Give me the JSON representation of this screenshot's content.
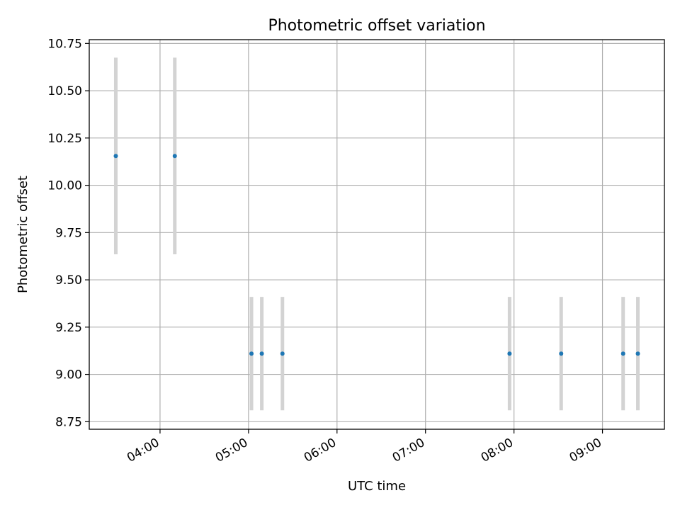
{
  "chart_data": {
    "type": "scatter",
    "title": "Photometric offset variation",
    "xlabel": "UTC time",
    "ylabel": "Photometric offset",
    "xlim": [
      "03:12",
      "09:42"
    ],
    "ylim": [
      8.71,
      10.77
    ],
    "grid": true,
    "x_ticks": [
      "04:00",
      "05:00",
      "06:00",
      "07:00",
      "08:00",
      "09:00"
    ],
    "y_ticks": [
      "8.75",
      "9.00",
      "9.25",
      "9.50",
      "9.75",
      "10.00",
      "10.25",
      "10.50",
      "10.75"
    ],
    "series": [
      {
        "marker_color": "#1f77b4",
        "errorbar_color": "#d3d3d3",
        "points": [
          {
            "x": "03:30",
            "y": 10.155,
            "yerr_low": 9.635,
            "yerr_high": 10.675
          },
          {
            "x": "04:10",
            "y": 10.155,
            "yerr_low": 9.635,
            "yerr_high": 10.675
          },
          {
            "x": "05:02",
            "y": 9.11,
            "yerr_low": 8.81,
            "yerr_high": 9.41
          },
          {
            "x": "05:09",
            "y": 9.11,
            "yerr_low": 8.81,
            "yerr_high": 9.41
          },
          {
            "x": "05:23",
            "y": 9.11,
            "yerr_low": 8.81,
            "yerr_high": 9.41
          },
          {
            "x": "07:57",
            "y": 9.11,
            "yerr_low": 8.81,
            "yerr_high": 9.41
          },
          {
            "x": "08:32",
            "y": 9.11,
            "yerr_low": 8.81,
            "yerr_high": 9.41
          },
          {
            "x": "09:14",
            "y": 9.11,
            "yerr_low": 8.81,
            "yerr_high": 9.41
          },
          {
            "x": "09:24",
            "y": 9.11,
            "yerr_low": 8.81,
            "yerr_high": 9.41
          }
        ]
      }
    ]
  }
}
